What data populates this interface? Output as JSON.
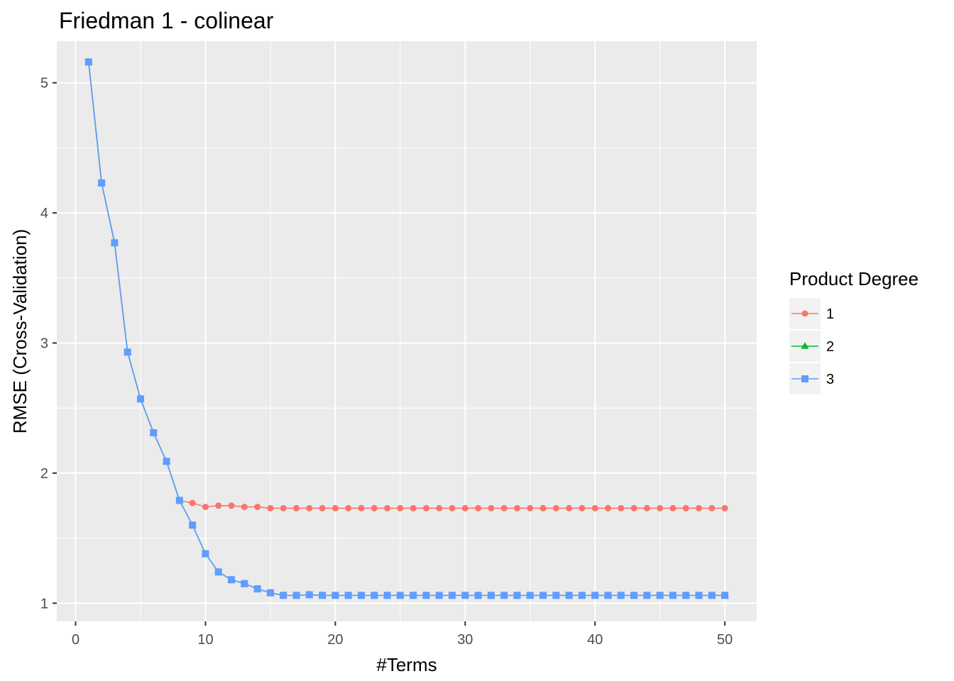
{
  "chart_data": {
    "type": "line",
    "title": "Friedman 1 - colinear",
    "xlabel": "#Terms",
    "ylabel": "RMSE (Cross-Validation)",
    "xlim": [
      -1.45,
      52.45
    ],
    "ylim": [
      0.86,
      5.32
    ],
    "xticks": [
      0,
      10,
      20,
      30,
      40,
      50
    ],
    "yticks": [
      1,
      2,
      3,
      4,
      5
    ],
    "grid": true,
    "legend": {
      "title": "Product Degree",
      "position": "right",
      "entries": [
        "1",
        "2",
        "3"
      ]
    },
    "series": [
      {
        "name": "1",
        "color": "#F8766D",
        "marker": "circle",
        "x": [
          1,
          2,
          3,
          4,
          5,
          6,
          7,
          8,
          9,
          10,
          11,
          12,
          13,
          14,
          15,
          16,
          17,
          18,
          19,
          20,
          21,
          22,
          23,
          24,
          25,
          26,
          27,
          28,
          29,
          30,
          31,
          32,
          33,
          34,
          35,
          36,
          37,
          38,
          39,
          40,
          41,
          42,
          43,
          44,
          45,
          46,
          47,
          48,
          49,
          50
        ],
        "y": [
          5.16,
          4.23,
          3.77,
          2.93,
          2.57,
          2.31,
          2.09,
          1.79,
          1.77,
          1.74,
          1.75,
          1.75,
          1.74,
          1.74,
          1.73,
          1.73,
          1.73,
          1.73,
          1.73,
          1.73,
          1.73,
          1.73,
          1.73,
          1.73,
          1.73,
          1.73,
          1.73,
          1.73,
          1.73,
          1.73,
          1.73,
          1.73,
          1.73,
          1.73,
          1.73,
          1.73,
          1.73,
          1.73,
          1.73,
          1.73,
          1.73,
          1.73,
          1.73,
          1.73,
          1.73,
          1.73,
          1.73,
          1.73,
          1.73,
          1.73
        ]
      },
      {
        "name": "2",
        "color": "#00BA38",
        "marker": "triangle",
        "x": [
          1,
          2,
          3,
          4,
          5,
          6,
          7,
          8,
          9,
          10,
          11,
          12,
          13,
          14,
          15,
          16,
          17,
          18,
          19,
          20,
          21,
          22,
          23,
          24,
          25,
          26,
          27,
          28,
          29,
          30,
          31,
          32,
          33,
          34,
          35,
          36,
          37,
          38,
          39,
          40,
          41,
          42,
          43,
          44,
          45,
          46,
          47,
          48,
          49,
          50
        ],
        "y": [
          5.16,
          4.23,
          3.77,
          2.93,
          2.57,
          2.31,
          2.09,
          1.79,
          1.6,
          1.38,
          1.24,
          1.18,
          1.15,
          1.11,
          1.08,
          1.06,
          1.06,
          1.065,
          1.06,
          1.06,
          1.06,
          1.06,
          1.06,
          1.06,
          1.06,
          1.06,
          1.06,
          1.06,
          1.06,
          1.06,
          1.06,
          1.06,
          1.06,
          1.06,
          1.06,
          1.06,
          1.06,
          1.06,
          1.06,
          1.06,
          1.06,
          1.06,
          1.06,
          1.06,
          1.06,
          1.06,
          1.06,
          1.06,
          1.06,
          1.06
        ]
      },
      {
        "name": "3",
        "color": "#619CFF",
        "marker": "square",
        "x": [
          1,
          2,
          3,
          4,
          5,
          6,
          7,
          8,
          9,
          10,
          11,
          12,
          13,
          14,
          15,
          16,
          17,
          18,
          19,
          20,
          21,
          22,
          23,
          24,
          25,
          26,
          27,
          28,
          29,
          30,
          31,
          32,
          33,
          34,
          35,
          36,
          37,
          38,
          39,
          40,
          41,
          42,
          43,
          44,
          45,
          46,
          47,
          48,
          49,
          50
        ],
        "y": [
          5.16,
          4.23,
          3.77,
          2.93,
          2.57,
          2.31,
          2.09,
          1.79,
          1.6,
          1.38,
          1.24,
          1.18,
          1.15,
          1.11,
          1.08,
          1.06,
          1.06,
          1.065,
          1.06,
          1.06,
          1.06,
          1.06,
          1.06,
          1.06,
          1.06,
          1.06,
          1.06,
          1.06,
          1.06,
          1.06,
          1.06,
          1.06,
          1.06,
          1.06,
          1.06,
          1.06,
          1.06,
          1.06,
          1.06,
          1.06,
          1.06,
          1.06,
          1.06,
          1.06,
          1.06,
          1.06,
          1.06,
          1.06,
          1.06,
          1.06
        ]
      }
    ],
    "colors": {
      "panel_background": "#EBEBEB",
      "grid_major": "#FFFFFF",
      "legend_key_background": "#F2F2F2"
    }
  }
}
